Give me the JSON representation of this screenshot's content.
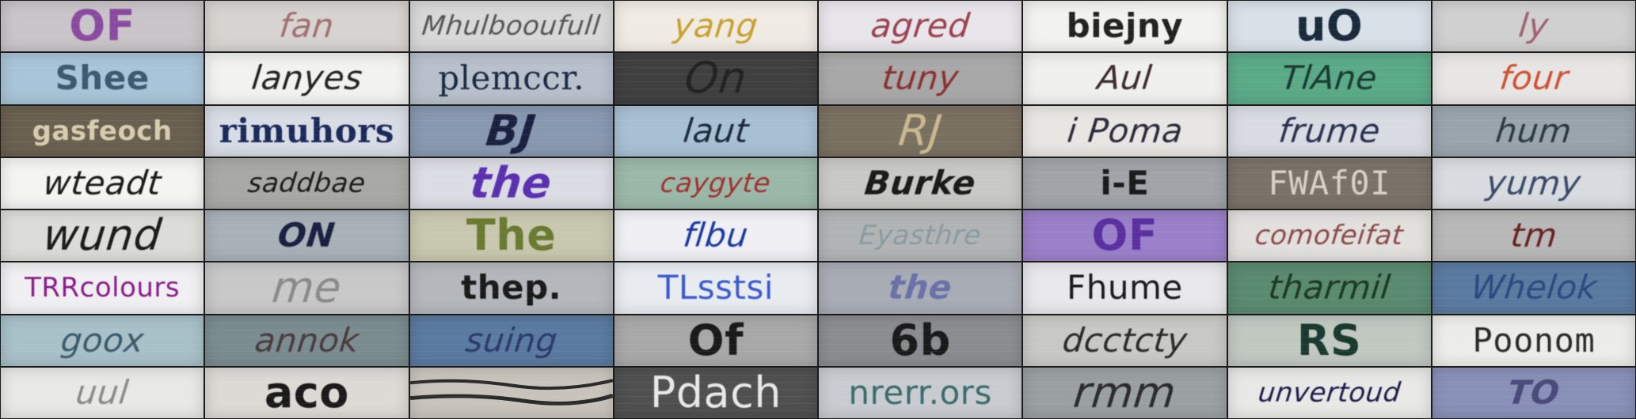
{
  "tiles": [
    {
      "text": "OF",
      "bg": "#c8c4c8",
      "color": "#8a4aa0",
      "cls": "upright bold big"
    },
    {
      "text": "fan",
      "bg": "#d6d3d0",
      "color": "#a07070",
      "cls": ""
    },
    {
      "text": "Mhulbooufull",
      "bg": "#d8d8d8",
      "color": "#555555",
      "cls": "small"
    },
    {
      "text": "yang",
      "bg": "#f0ece4",
      "color": "#c8a030",
      "cls": ""
    },
    {
      "text": "agred",
      "bg": "#e8e6ea",
      "color": "#9a4050",
      "cls": ""
    },
    {
      "text": "biejny",
      "bg": "#f2f2f0",
      "color": "#222222",
      "cls": "upright bold"
    },
    {
      "text": "uO",
      "bg": "#d8e0e8",
      "color": "#1a2a3a",
      "cls": "upright bold big"
    },
    {
      "text": "ly",
      "bg": "#d0d0d0",
      "color": "#a06070",
      "cls": ""
    },
    {
      "text": "Shee",
      "bg": "#a8c4d8",
      "color": "#3a5a70",
      "cls": "upright bold"
    },
    {
      "text": "lanyes",
      "bg": "#f2f2f0",
      "color": "#222222",
      "cls": ""
    },
    {
      "text": "plemccr.",
      "bg": "#b8c0cc",
      "color": "#1a2a40",
      "cls": "upright serif"
    },
    {
      "text": "On",
      "bg": "#404040",
      "color": "#222222",
      "cls": "big"
    },
    {
      "text": "tuny",
      "bg": "#a8a8a8",
      "color": "#8a3030",
      "cls": ""
    },
    {
      "text": "Aul",
      "bg": "#f0f0ee",
      "color": "#3a2a2a",
      "cls": ""
    },
    {
      "text": "TlAne",
      "bg": "#5aaa88",
      "color": "#1a3a30",
      "cls": ""
    },
    {
      "text": "four",
      "bg": "#e8e6e4",
      "color": "#d05030",
      "cls": ""
    },
    {
      "text": "gasfeoch",
      "bg": "#6a6050",
      "color": "#d8ccb0",
      "cls": "upright bold small"
    },
    {
      "text": "rimuhors",
      "bg": "#d8dce4",
      "color": "#1a2a5a",
      "cls": "upright serif bold"
    },
    {
      "text": "BJ",
      "bg": "#8898b0",
      "color": "#1a2040",
      "cls": "bold big"
    },
    {
      "text": "laut",
      "bg": "#a8c0d4",
      "color": "#1a2a3a",
      "cls": ""
    },
    {
      "text": "RJ",
      "bg": "#7a7060",
      "color": "#c8b890",
      "cls": "big"
    },
    {
      "text": "i Poma",
      "bg": "#e8e6e2",
      "color": "#2a2a3a",
      "cls": ""
    },
    {
      "text": "frume",
      "bg": "#d8dce2",
      "color": "#2a3050",
      "cls": ""
    },
    {
      "text": "hum",
      "bg": "#9aa4ac",
      "color": "#2a3a40",
      "cls": ""
    },
    {
      "text": "wteadt",
      "bg": "#f4f4f2",
      "color": "#1a1a1a",
      "cls": ""
    },
    {
      "text": "saddbae",
      "bg": "#a8a8a4",
      "color": "#1a1a1a",
      "cls": "small"
    },
    {
      "text": "the",
      "bg": "#dcdce4",
      "color": "#5a30b0",
      "cls": "bold big"
    },
    {
      "text": "caygyte",
      "bg": "#9ab8a8",
      "color": "#a03030",
      "cls": "small"
    },
    {
      "text": "Burke",
      "bg": "#c8c8c4",
      "color": "#1a1a1a",
      "cls": "bold"
    },
    {
      "text": "i-E",
      "bg": "#a0a4a8",
      "color": "#1a1a1a",
      "cls": "upright bold"
    },
    {
      "text": "FWAf0I",
      "bg": "#7a7268",
      "color": "#d8d0c8",
      "cls": "upright mono"
    },
    {
      "text": "yumy",
      "bg": "#d8dce0",
      "color": "#3a4a6a",
      "cls": ""
    },
    {
      "text": "wund",
      "bg": "#dcdcd8",
      "color": "#1a1a1a",
      "cls": "big"
    },
    {
      "text": "ON",
      "bg": "#a8b0b8",
      "color": "#1a2040",
      "cls": "bold"
    },
    {
      "text": "The",
      "bg": "#c8c8b0",
      "color": "#6a7a30",
      "cls": "upright bold big"
    },
    {
      "text": "flbu",
      "bg": "#f0f0f4",
      "color": "#1a3aa0",
      "cls": ""
    },
    {
      "text": "Eyasthre",
      "bg": "#b0b4b4",
      "color": "#8a9aa0",
      "cls": "small"
    },
    {
      "text": "OF",
      "bg": "#9a80c8",
      "color": "#5a30a0",
      "cls": "upright bold big"
    },
    {
      "text": "comofeifat",
      "bg": "#e2e0dc",
      "color": "#8a4a4a",
      "cls": "small"
    },
    {
      "text": "tm",
      "bg": "#b8b8b8",
      "color": "#6a2020",
      "cls": ""
    },
    {
      "text": "TRRcolours",
      "bg": "#f0f0f2",
      "color": "#8a1a8a",
      "cls": "upright small"
    },
    {
      "text": "me",
      "bg": "#c8c8c8",
      "color": "#8a8a8a",
      "cls": "big"
    },
    {
      "text": "thep.",
      "bg": "#b4b8bc",
      "color": "#1a1a1a",
      "cls": "upright bold"
    },
    {
      "text": "TLsstsi",
      "bg": "#e8ecf0",
      "color": "#3a5ad0",
      "cls": "upright"
    },
    {
      "text": "the",
      "bg": "#a8acb4",
      "color": "#6a70a8",
      "cls": "bold"
    },
    {
      "text": "Fhume",
      "bg": "#e8e8ea",
      "color": "#1a1a1a",
      "cls": "upright"
    },
    {
      "text": "tharmil",
      "bg": "#5a8a70",
      "color": "#1a3a20",
      "cls": ""
    },
    {
      "text": "Whelok",
      "bg": "#5a7aa0",
      "color": "#2a4a80",
      "cls": ""
    },
    {
      "text": "goox",
      "bg": "#a8c0c8",
      "color": "#3a5a6a",
      "cls": ""
    },
    {
      "text": "annok",
      "bg": "#7a8c90",
      "color": "#4a3a3a",
      "cls": ""
    },
    {
      "text": "suing",
      "bg": "#5a7aa0",
      "color": "#2a3a6a",
      "cls": ""
    },
    {
      "text": "Of",
      "bg": "#a8a8a8",
      "color": "#1a1a1a",
      "cls": "upright bold big"
    },
    {
      "text": "6b",
      "bg": "#8a8c90",
      "color": "#1a1a1a",
      "cls": "upright bold big"
    },
    {
      "text": "dcctcty",
      "bg": "#c8c8c4",
      "color": "#2a2a2a",
      "cls": ""
    },
    {
      "text": "RS",
      "bg": "#c0c8c0",
      "color": "#1a3a30",
      "cls": "upright bold big"
    },
    {
      "text": "Poonom",
      "bg": "#ecece8",
      "color": "#2a2a2a",
      "cls": "upright mono"
    },
    {
      "text": "uul",
      "bg": "#e8e8e6",
      "color": "#8a8a8a",
      "cls": ""
    },
    {
      "text": "aco",
      "bg": "#dcdad4",
      "color": "#1a1a1a",
      "cls": "upright bold big"
    },
    {
      "text": "",
      "bg": "#c8c4bc",
      "color": "#1a1a1a",
      "cls": ""
    },
    {
      "text": "Pdach",
      "bg": "#505050",
      "color": "#e8e8e8",
      "cls": "upright big"
    },
    {
      "text": "nrerr.ors",
      "bg": "#c8ccd0",
      "color": "#3a6a6a",
      "cls": "upright"
    },
    {
      "text": "rmm",
      "bg": "#9aa0a0",
      "color": "#2a2a2a",
      "cls": "big"
    },
    {
      "text": "unvertoud",
      "bg": "#e8e8e6",
      "color": "#1a1a4a",
      "cls": "small"
    },
    {
      "text": "TO",
      "bg": "#8890b8",
      "color": "#4a4a7a",
      "cls": "bold"
    }
  ]
}
